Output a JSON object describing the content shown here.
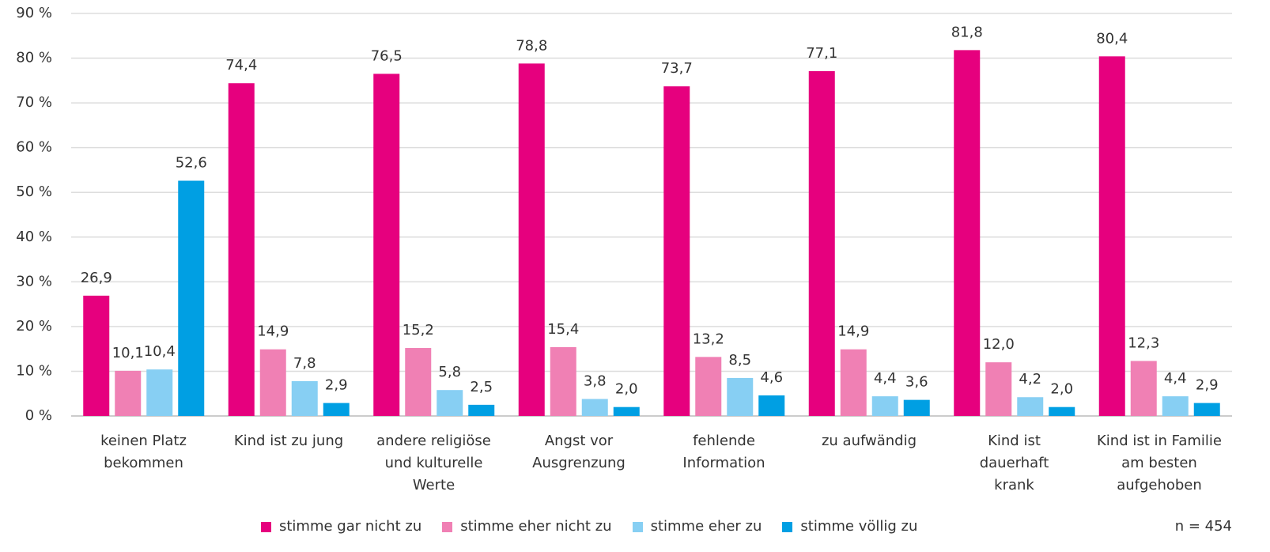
{
  "chart_data": {
    "type": "bar",
    "categories": [
      "keinen Platz\nbekommen",
      "Kind ist zu jung",
      "andere religiöse\nund kulturelle\nWerte",
      "Angst vor\nAusgrenzung",
      "fehlende\nInformation",
      "zu aufwändig",
      "Kind ist\ndauerhaft\nkrank",
      "Kind ist in Familie\nam besten\naufgehoben"
    ],
    "series": [
      {
        "name": "stimme gar nicht zu",
        "color": "#e6007e",
        "values": [
          26.9,
          74.4,
          76.5,
          78.8,
          73.7,
          77.1,
          81.8,
          80.4
        ],
        "value_labels": [
          "26,9",
          "74,4",
          "76,5",
          "78,8",
          "73,7",
          "77,1",
          "81,8",
          "80,4"
        ]
      },
      {
        "name": "stimme eher nicht zu",
        "color": "#f080b4",
        "values": [
          10.1,
          14.9,
          15.2,
          15.4,
          13.2,
          14.9,
          12.0,
          12.3
        ],
        "value_labels": [
          "10,1",
          "14,9",
          "15,2",
          "15,4",
          "13,2",
          "14,9",
          "12,0",
          "12,3"
        ]
      },
      {
        "name": "stimme eher zu",
        "color": "#87cff3",
        "values": [
          10.4,
          7.8,
          5.8,
          3.8,
          8.5,
          4.4,
          4.2,
          4.4
        ],
        "value_labels": [
          "10,4",
          "7,8",
          "5,8",
          "3,8",
          "8,5",
          "4,4",
          "4,2",
          "4,4"
        ]
      },
      {
        "name": "stimme völlig zu",
        "color": "#009fe3",
        "values": [
          52.6,
          2.9,
          2.5,
          2.0,
          4.6,
          3.6,
          2.0,
          2.9
        ],
        "value_labels": [
          "52,6",
          "2,9",
          "2,5",
          "2,0",
          "4,6",
          "3,6",
          "2,0",
          "2,9"
        ]
      }
    ],
    "ylim": [
      0,
      90
    ],
    "yticks": [
      {
        "value": 0,
        "label": "0 %"
      },
      {
        "value": 10,
        "label": "10 %"
      },
      {
        "value": 20,
        "label": "20 %"
      },
      {
        "value": 30,
        "label": "30 %"
      },
      {
        "value": 40,
        "label": "40 %"
      },
      {
        "value": 50,
        "label": "50 %"
      },
      {
        "value": 60,
        "label": "60 %"
      },
      {
        "value": 70,
        "label": "70 %"
      },
      {
        "value": 80,
        "label": "80 %"
      },
      {
        "value": 90,
        "label": "90 %"
      }
    ],
    "grid": true,
    "annotation": "n = 454",
    "legend_position": "bottom"
  }
}
